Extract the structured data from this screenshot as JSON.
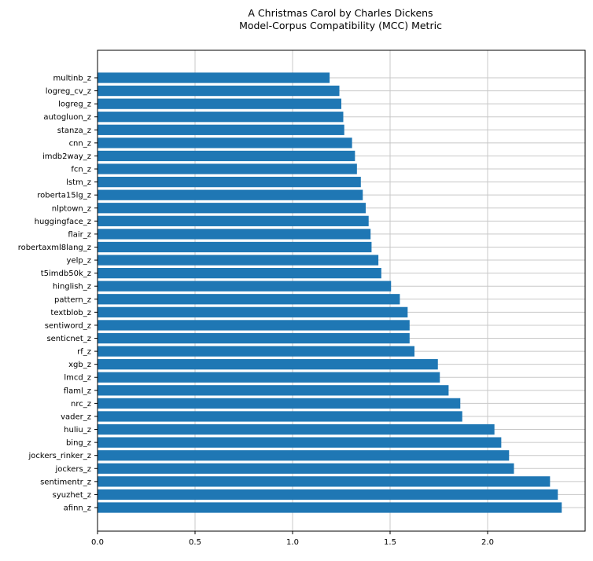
{
  "chart_data": {
    "type": "bar",
    "orientation": "horizontal",
    "title": "A Christmas Carol by Charles Dickens",
    "subtitle": "Model-Corpus Compatibility (MCC) Metric",
    "xlabel": "",
    "ylabel": "",
    "xlim": [
      0,
      2.5
    ],
    "xticks": [
      0.0,
      0.5,
      1.0,
      1.5,
      2.0
    ],
    "xtick_labels": [
      "0.0",
      "0.5",
      "1.0",
      "1.5",
      "2.0"
    ],
    "grid": true,
    "bar_color": "#1f77b4",
    "categories": [
      "multinb_z",
      "logreg_cv_z",
      "logreg_z",
      "autogluon_z",
      "stanza_z",
      "cnn_z",
      "imdb2way_z",
      "fcn_z",
      "lstm_z",
      "roberta15lg_z",
      "nlptown_z",
      "huggingface_z",
      "flair_z",
      "robertaxml8lang_z",
      "yelp_z",
      "t5imdb50k_z",
      "hinglish_z",
      "pattern_z",
      "textblob_z",
      "sentiword_z",
      "senticnet_z",
      "rf_z",
      "xgb_z",
      "lmcd_z",
      "flaml_z",
      "nrc_z",
      "vader_z",
      "huliu_z",
      "bing_z",
      "jockers_rinker_z",
      "jockers_z",
      "sentimentr_z",
      "syuzhet_z",
      "afinn_z"
    ],
    "values": [
      1.19,
      1.24,
      1.25,
      1.26,
      1.265,
      1.305,
      1.32,
      1.33,
      1.35,
      1.36,
      1.375,
      1.39,
      1.4,
      1.405,
      1.44,
      1.455,
      1.505,
      1.55,
      1.59,
      1.6,
      1.6,
      1.625,
      1.745,
      1.755,
      1.8,
      1.86,
      1.87,
      2.035,
      2.07,
      2.11,
      2.135,
      2.32,
      2.36,
      2.38
    ]
  }
}
